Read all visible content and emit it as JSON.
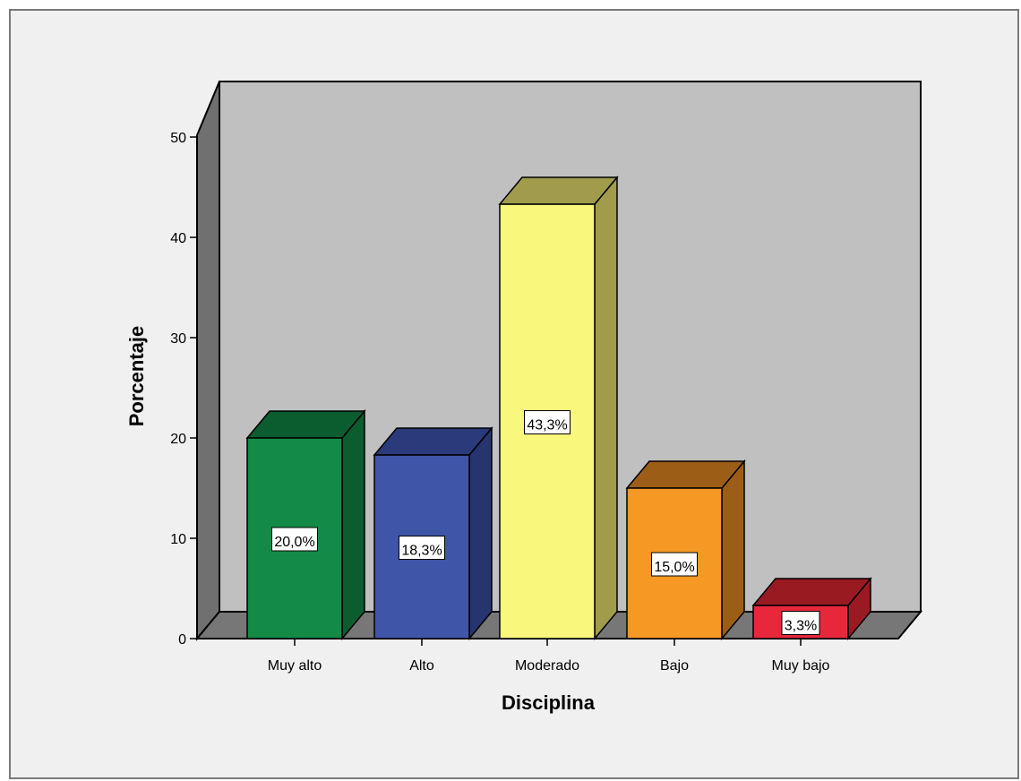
{
  "chart_data": {
    "type": "bar",
    "style": "3d",
    "categories": [
      "Muy alto",
      "Alto",
      "Moderado",
      "Bajo",
      "Muy bajo"
    ],
    "values": [
      20.0,
      18.3,
      43.3,
      15.0,
      3.3
    ],
    "data_labels": [
      "20,0%",
      "18,3%",
      "43,3%",
      "15,0%",
      "3,3%"
    ],
    "xlabel": "Disciplina",
    "ylabel": "Porcentaje",
    "ylim": [
      0,
      50
    ],
    "yticks": [
      0,
      10,
      20,
      30,
      40,
      50
    ],
    "grid": false,
    "colors": {
      "bars_front": [
        "#138a45",
        "#3f55a8",
        "#f9f77c",
        "#f59824",
        "#e8283a"
      ],
      "bars_top": [
        "#0b5c2f",
        "#2a3a7a",
        "#a09c4c",
        "#9c5e17",
        "#9a1a22"
      ],
      "bars_side": [
        "#0b5c2f",
        "#26356f",
        "#a09c4c",
        "#9c5e17",
        "#9a1a22"
      ],
      "back_wall": "#c0c0c0",
      "side_wall": "#707070",
      "floor": "#777777",
      "frame_bg": "#f0f0f0"
    }
  }
}
